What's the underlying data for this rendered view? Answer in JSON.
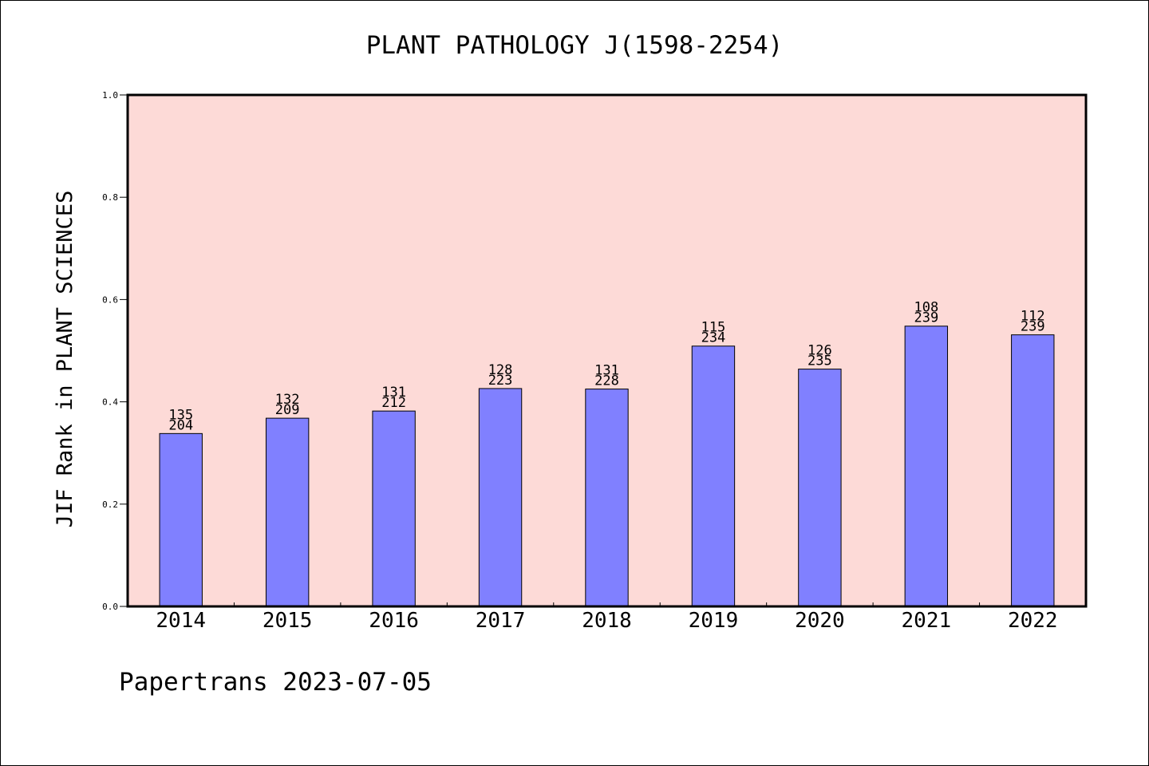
{
  "chart_data": {
    "type": "bar",
    "title": "PLANT PATHOLOGY J(1598-2254)",
    "xlabel": "",
    "ylabel": "JIF Rank in PLANT SCIENCES",
    "categories": [
      "2014",
      "2015",
      "2016",
      "2017",
      "2018",
      "2019",
      "2020",
      "2021",
      "2022"
    ],
    "series": [
      {
        "values": [
          0.338,
          0.368,
          0.382,
          0.426,
          0.425,
          0.509,
          0.464,
          0.548,
          0.531
        ],
        "label_top": [
          "135",
          "132",
          "131",
          "128",
          "131",
          "115",
          "126",
          "108",
          "112"
        ],
        "label_bottom": [
          "204",
          "209",
          "212",
          "223",
          "228",
          "234",
          "235",
          "239",
          "239"
        ]
      }
    ],
    "ylim": [
      0.0,
      1.0
    ],
    "yticks": [
      "0.0",
      "0.2",
      "0.4",
      "0.6",
      "0.8",
      "1.0"
    ],
    "grid": false,
    "colors": {
      "bar": "#8080ff",
      "plot_background": "#fddad7",
      "axes": "#000000"
    }
  },
  "footer": {
    "watermark": "Papertrans 2023-07-05"
  }
}
